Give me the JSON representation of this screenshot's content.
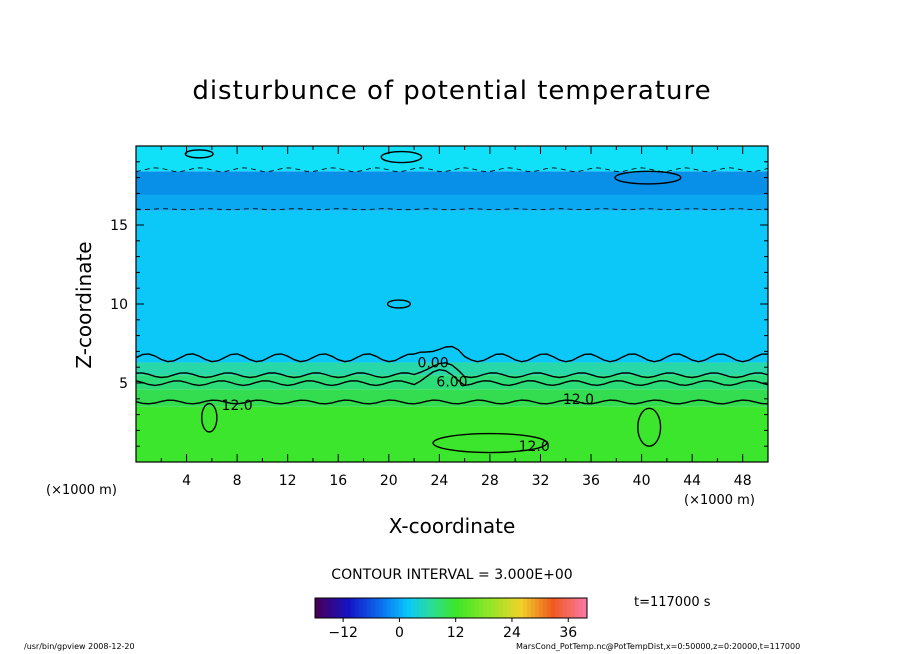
{
  "chart_data": {
    "type": "heatmap",
    "title": "disturbunce of potential temperature",
    "xlabel": "X-coordinate",
    "ylabel": "Z-coordinate",
    "x_unit_left": "(×1000 m)",
    "x_unit_right": "(×1000 m)",
    "xlim": [
      0,
      50
    ],
    "ylim": [
      0,
      20
    ],
    "x_ticks": [
      4,
      8,
      12,
      16,
      20,
      24,
      28,
      32,
      36,
      40,
      44,
      48
    ],
    "x_tick_labels": [
      "4",
      "8",
      "12",
      "16",
      "20",
      "24",
      "28",
      "32",
      "36",
      "40",
      "44",
      "48"
    ],
    "y_ticks": [
      5,
      10,
      15
    ],
    "y_tick_labels": [
      "5",
      "10",
      "15"
    ],
    "contour_interval_text": "CONTOUR INTERVAL = 3.000E+00",
    "contour_levels": [
      -3,
      0,
      3,
      6,
      9,
      12
    ],
    "contour_labels": [
      {
        "text": "0.00",
        "x": 23.5,
        "y": 6.3
      },
      {
        "text": "6.00",
        "x": 25,
        "y": 5.1
      },
      {
        "text": "12.0",
        "x": 8,
        "y": 3.6
      },
      {
        "text": "12.0",
        "x": 35,
        "y": 4.0
      },
      {
        "text": "12.0",
        "x": 31.5,
        "y": 1.0
      }
    ],
    "bands": [
      {
        "z0": 0,
        "z1": 3.5,
        "value": 14,
        "color": "#3ce62c"
      },
      {
        "z0": 3.5,
        "z1": 4.6,
        "value": 11,
        "color": "#34dc50"
      },
      {
        "z0": 4.6,
        "z1": 5.5,
        "value": 8,
        "color": "#2cdc78"
      },
      {
        "z0": 5.5,
        "z1": 6.3,
        "value": 4,
        "color": "#28d8a8"
      },
      {
        "z0": 6.3,
        "z1": 15.9,
        "value": -1,
        "color": "#0cc8f8"
      },
      {
        "z0": 15.9,
        "z1": 16.9,
        "value": -4,
        "color": "#0aa8f0"
      },
      {
        "z0": 16.9,
        "z1": 18.4,
        "value": -6,
        "color": "#0890e8"
      },
      {
        "z0": 18.4,
        "z1": 20,
        "value": 1,
        "color": "#10e0f8"
      }
    ],
    "colorbar": {
      "min": -18,
      "max": 40,
      "ticks": [
        -12,
        0,
        12,
        24,
        36
      ],
      "tick_labels": [
        "−12",
        "0",
        "12",
        "24",
        "36"
      ]
    },
    "time_label": "t=117000 s",
    "colors": {
      "background": "#ffffff",
      "frame": "#000000"
    }
  },
  "footer": {
    "left": "/usr/bin/gpview   2008-12-20",
    "right": "MarsCond_PotTemp.nc@PotTempDist,x=0:50000,z=0:20000,t=117000"
  }
}
